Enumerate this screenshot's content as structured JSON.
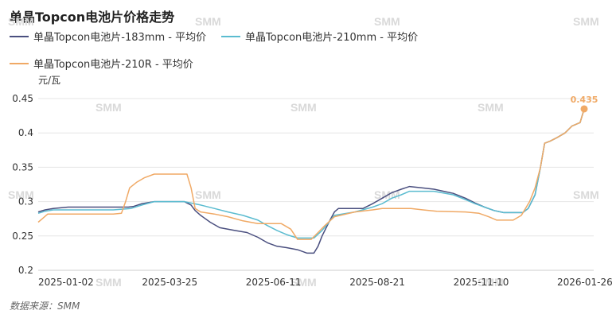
{
  "chart_data": {
    "type": "line",
    "title": "单晶Topcon电池片价格走势",
    "ylabel": "元/瓦",
    "ylim": [
      0.2,
      0.45
    ],
    "yticks": [
      0.2,
      0.25,
      0.3,
      0.35,
      0.4,
      0.45
    ],
    "xlim": [
      "2025-01-01",
      "2026-02-12"
    ],
    "xtick_labels": [
      "2025-01-02",
      "2025-03-25",
      "2025-06-11",
      "2025-08-21",
      "2025-11-10",
      "2026-01-26"
    ],
    "grid": "horizontal",
    "legend_position": "top",
    "source": "数据来源：SMM",
    "watermark": "SMM",
    "end_label": "0.435",
    "series": [
      {
        "name": "单晶Topcon电池片-183mm - 平均价",
        "color": "#4a4f7f",
        "points": [
          [
            "2025-01-01",
            0.285
          ],
          [
            "2025-01-06",
            0.288
          ],
          [
            "2025-01-12",
            0.29
          ],
          [
            "2025-01-23",
            0.292
          ],
          [
            "2025-02-25",
            0.292
          ],
          [
            "2025-03-08",
            0.292
          ],
          [
            "2025-03-12",
            0.293
          ],
          [
            "2025-03-18",
            0.297
          ],
          [
            "2025-03-27",
            0.3
          ],
          [
            "2025-04-18",
            0.3
          ],
          [
            "2025-04-23",
            0.295
          ],
          [
            "2025-04-26",
            0.287
          ],
          [
            "2025-04-30",
            0.28
          ],
          [
            "2025-05-07",
            0.27
          ],
          [
            "2025-05-14",
            0.262
          ],
          [
            "2025-05-25",
            0.258
          ],
          [
            "2025-06-03",
            0.255
          ],
          [
            "2025-06-11",
            0.248
          ],
          [
            "2025-06-18",
            0.24
          ],
          [
            "2025-06-25",
            0.235
          ],
          [
            "2025-07-02",
            0.233
          ],
          [
            "2025-07-10",
            0.23
          ],
          [
            "2025-07-17",
            0.225
          ],
          [
            "2025-07-22",
            0.225
          ],
          [
            "2025-07-25",
            0.235
          ],
          [
            "2025-07-28",
            0.25
          ],
          [
            "2025-08-02",
            0.27
          ],
          [
            "2025-08-06",
            0.285
          ],
          [
            "2025-08-09",
            0.29
          ],
          [
            "2025-08-20",
            0.29
          ],
          [
            "2025-08-27",
            0.29
          ],
          [
            "2025-09-03",
            0.297
          ],
          [
            "2025-09-10",
            0.305
          ],
          [
            "2025-09-17",
            0.313
          ],
          [
            "2025-09-24",
            0.318
          ],
          [
            "2025-09-30",
            0.322
          ],
          [
            "2025-10-09",
            0.32
          ],
          [
            "2025-10-18",
            0.318
          ],
          [
            "2025-10-25",
            0.315
          ],
          [
            "2025-11-01",
            0.312
          ],
          [
            "2025-11-10",
            0.305
          ],
          [
            "2025-11-17",
            0.298
          ],
          [
            "2025-11-24",
            0.292
          ],
          [
            "2025-12-01",
            0.287
          ],
          [
            "2025-12-08",
            0.284
          ],
          [
            "2025-12-15",
            0.284
          ],
          [
            "2025-12-22",
            0.284
          ],
          [
            "2025-12-26",
            0.29
          ],
          [
            "2025-12-31",
            0.31
          ],
          [
            "2026-01-04",
            0.35
          ],
          [
            "2026-01-07",
            0.385
          ],
          [
            "2026-01-11",
            0.388
          ],
          [
            "2026-01-16",
            0.393
          ],
          [
            "2026-01-22",
            0.4
          ],
          [
            "2026-01-27",
            0.41
          ],
          [
            "2026-02-02",
            0.415
          ],
          [
            "2026-02-05",
            0.435
          ]
        ]
      },
      {
        "name": "单晶Topcon电池片-210mm - 平均价",
        "color": "#5bbcd0",
        "points": [
          [
            "2025-01-01",
            0.283
          ],
          [
            "2025-01-06",
            0.286
          ],
          [
            "2025-01-12",
            0.288
          ],
          [
            "2025-01-23",
            0.288
          ],
          [
            "2025-02-25",
            0.288
          ],
          [
            "2025-03-10",
            0.29
          ],
          [
            "2025-03-18",
            0.295
          ],
          [
            "2025-03-27",
            0.3
          ],
          [
            "2025-04-18",
            0.3
          ],
          [
            "2025-04-30",
            0.295
          ],
          [
            "2025-05-10",
            0.29
          ],
          [
            "2025-05-20",
            0.285
          ],
          [
            "2025-05-31",
            0.28
          ],
          [
            "2025-06-11",
            0.273
          ],
          [
            "2025-06-18",
            0.265
          ],
          [
            "2025-06-25",
            0.258
          ],
          [
            "2025-07-02",
            0.252
          ],
          [
            "2025-07-10",
            0.247
          ],
          [
            "2025-07-22",
            0.247
          ],
          [
            "2025-07-28",
            0.258
          ],
          [
            "2025-08-02",
            0.27
          ],
          [
            "2025-08-06",
            0.28
          ],
          [
            "2025-08-21",
            0.285
          ],
          [
            "2025-09-03",
            0.292
          ],
          [
            "2025-09-10",
            0.297
          ],
          [
            "2025-09-17",
            0.305
          ],
          [
            "2025-09-24",
            0.31
          ],
          [
            "2025-09-30",
            0.315
          ],
          [
            "2025-10-18",
            0.315
          ],
          [
            "2025-11-01",
            0.31
          ],
          [
            "2025-11-10",
            0.303
          ],
          [
            "2025-11-17",
            0.297
          ],
          [
            "2025-11-24",
            0.292
          ],
          [
            "2025-12-01",
            0.287
          ],
          [
            "2025-12-08",
            0.284
          ],
          [
            "2025-12-22",
            0.284
          ],
          [
            "2025-12-26",
            0.29
          ],
          [
            "2025-12-31",
            0.31
          ],
          [
            "2026-01-04",
            0.35
          ],
          [
            "2026-01-07",
            0.385
          ],
          [
            "2026-01-11",
            0.388
          ],
          [
            "2026-01-16",
            0.393
          ],
          [
            "2026-01-22",
            0.4
          ],
          [
            "2026-01-27",
            0.41
          ],
          [
            "2026-02-02",
            0.415
          ],
          [
            "2026-02-05",
            0.435
          ]
        ]
      },
      {
        "name": "单晶Topcon电池片-210R - 平均价",
        "color": "#f0a965",
        "points": [
          [
            "2025-01-01",
            0.27
          ],
          [
            "2025-01-04",
            0.275
          ],
          [
            "2025-01-08",
            0.282
          ],
          [
            "2025-01-23",
            0.282
          ],
          [
            "2025-02-25",
            0.282
          ],
          [
            "2025-03-03",
            0.283
          ],
          [
            "2025-03-06",
            0.3
          ],
          [
            "2025-03-09",
            0.32
          ],
          [
            "2025-03-14",
            0.328
          ],
          [
            "2025-03-20",
            0.335
          ],
          [
            "2025-03-27",
            0.34
          ],
          [
            "2025-04-20",
            0.34
          ],
          [
            "2025-04-23",
            0.32
          ],
          [
            "2025-04-26",
            0.29
          ],
          [
            "2025-04-30",
            0.285
          ],
          [
            "2025-05-10",
            0.282
          ],
          [
            "2025-05-20",
            0.278
          ],
          [
            "2025-05-31",
            0.272
          ],
          [
            "2025-06-11",
            0.268
          ],
          [
            "2025-06-18",
            0.268
          ],
          [
            "2025-06-28",
            0.268
          ],
          [
            "2025-07-05",
            0.26
          ],
          [
            "2025-07-10",
            0.245
          ],
          [
            "2025-07-20",
            0.245
          ],
          [
            "2025-07-25",
            0.255
          ],
          [
            "2025-07-30",
            0.265
          ],
          [
            "2025-08-06",
            0.278
          ],
          [
            "2025-08-21",
            0.285
          ],
          [
            "2025-09-03",
            0.288
          ],
          [
            "2025-09-10",
            0.29
          ],
          [
            "2025-10-01",
            0.29
          ],
          [
            "2025-10-10",
            0.288
          ],
          [
            "2025-10-20",
            0.286
          ],
          [
            "2025-11-10",
            0.285
          ],
          [
            "2025-11-20",
            0.283
          ],
          [
            "2025-11-27",
            0.278
          ],
          [
            "2025-12-03",
            0.273
          ],
          [
            "2025-12-15",
            0.273
          ],
          [
            "2025-12-21",
            0.28
          ],
          [
            "2025-12-27",
            0.3
          ],
          [
            "2025-12-31",
            0.32
          ],
          [
            "2026-01-04",
            0.35
          ],
          [
            "2026-01-07",
            0.385
          ],
          [
            "2026-01-11",
            0.388
          ],
          [
            "2026-01-16",
            0.393
          ],
          [
            "2026-01-22",
            0.4
          ],
          [
            "2026-01-27",
            0.41
          ],
          [
            "2026-02-02",
            0.415
          ],
          [
            "2026-02-05",
            0.435
          ]
        ]
      }
    ]
  }
}
